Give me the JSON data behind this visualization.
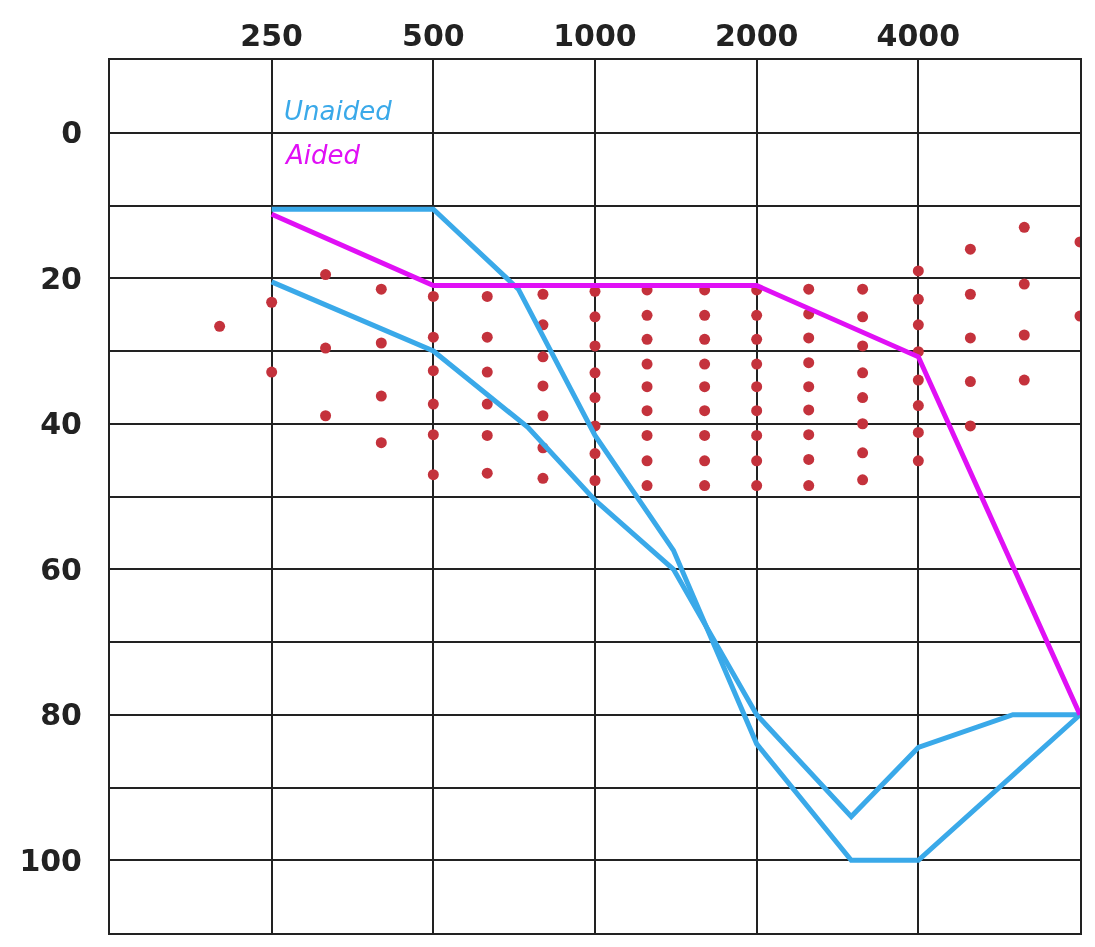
{
  "chart_data": {
    "type": "line",
    "xlim": [
      125,
      8000
    ],
    "xticks": [
      250,
      500,
      1000,
      2000,
      4000
    ],
    "log": "x",
    "ylim": [
      110,
      -10
    ],
    "yticks": [
      {
        "value": -10,
        "label": null
      },
      0,
      {
        "value": 10,
        "label": null
      },
      20,
      {
        "value": 30,
        "label": null
      },
      40,
      {
        "value": 50,
        "label": null
      },
      60,
      {
        "value": 70,
        "label": null
      },
      80,
      {
        "value": 90,
        "label": null
      },
      100,
      {
        "value": 110,
        "label": null
      }
    ],
    "grid": true,
    "legend": false,
    "series": [
      {
        "type": "scatter",
        "color": "#c4323c",
        "marker": "circle",
        "x": [
          200,
          250,
          250,
          315,
          315,
          315,
          400,
          400,
          400,
          400,
          500,
          500,
          500,
          500,
          500,
          500,
          630,
          630,
          630,
          630,
          630,
          630,
          800,
          800,
          800,
          800,
          800,
          800,
          800,
          1000,
          1000,
          1000,
          1000,
          1000,
          1000,
          1000,
          1000,
          1250,
          1250,
          1250,
          1250,
          1250,
          1250,
          1250,
          1250,
          1250,
          1600,
          1600,
          1600,
          1600,
          1600,
          1600,
          1600,
          1600,
          1600,
          2000,
          2000,
          2000,
          2000,
          2000,
          2000,
          2000,
          2000,
          2000,
          2500,
          2500,
          2500,
          2500,
          2500,
          2500,
          2500,
          2500,
          2500,
          3150,
          3150,
          3150,
          3150,
          3150,
          3150,
          3150,
          3150,
          4000,
          4000,
          4000,
          4000,
          4000,
          4000,
          4000,
          4000,
          5000,
          5000,
          5000,
          5000,
          5000,
          6300,
          6300,
          6300,
          6300,
          8000,
          8000
        ],
        "values": [
          26.6,
          23.3,
          32.9,
          19.5,
          29.6,
          38.9,
          21.5,
          28.9,
          36.2,
          42.6,
          22.5,
          28.1,
          32.7,
          37.3,
          41.5,
          47,
          22.5,
          28.1,
          32.9,
          37.3,
          41.6,
          46.8,
          22.2,
          26.4,
          30.8,
          34.8,
          38.9,
          43.3,
          47.5,
          21.8,
          25.3,
          29.3,
          33,
          36.4,
          40.3,
          44.1,
          47.8,
          21.6,
          25.1,
          28.4,
          31.8,
          34.9,
          38.2,
          41.6,
          45.1,
          48.5,
          21.6,
          25.1,
          28.4,
          31.8,
          34.9,
          38.2,
          41.6,
          45.1,
          48.5,
          21.6,
          25.1,
          28.4,
          31.8,
          34.9,
          38.2,
          41.6,
          45.1,
          48.5,
          21.5,
          24.9,
          28.2,
          31.6,
          34.9,
          38.1,
          41.5,
          44.9,
          48.5,
          21.5,
          25.3,
          29.3,
          33,
          36.4,
          40,
          44,
          47.7,
          19,
          22.9,
          26.4,
          30.1,
          34,
          37.5,
          41.2,
          45.1,
          16,
          22.2,
          28.2,
          34.2,
          40.3,
          13,
          20.8,
          27.8,
          34,
          15,
          25.2
        ]
      },
      {
        "name": "Unaided",
        "color": "#3aa9e9",
        "marker": "none",
        "line_style": "solid",
        "x": [
          250,
          500,
          720,
          1000,
          1400,
          2000,
          3000,
          4000,
          8000
        ],
        "values": [
          10.5,
          10.5,
          21.5,
          41.6,
          57.4,
          84,
          100,
          100,
          80
        ]
      },
      {
        "color": "#3aa9e9",
        "marker": "none",
        "line_style": "solid",
        "x": [
          250,
          500,
          750,
          1000,
          1400,
          2000,
          3000,
          4000,
          6000,
          8000
        ],
        "values": [
          20.5,
          30,
          40.5,
          50.5,
          60,
          80,
          94,
          84.5,
          80,
          80
        ]
      },
      {
        "name": "Aided",
        "color": "#e010f5",
        "marker": "none",
        "line_style": "solid",
        "x": [
          250,
          500,
          2000,
          4000,
          8000
        ],
        "values": [
          11.2,
          21,
          21,
          30.8,
          80
        ]
      }
    ]
  }
}
